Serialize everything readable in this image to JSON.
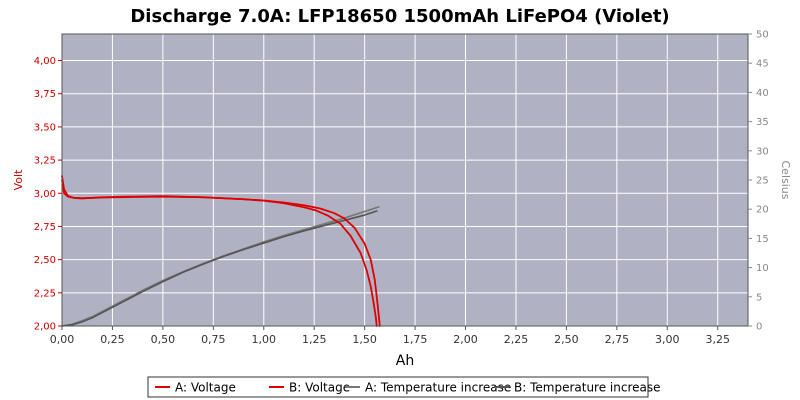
{
  "chart_data": {
    "type": "line",
    "title": "Discharge 7.0A: LFP18650 1500mAh LiFePO4 (Violet)",
    "xlabel": "Ah",
    "ylabel_left": "Volt",
    "ylabel_right": "Celsius",
    "xlim": [
      0,
      3.4
    ],
    "ylim_left": [
      2.0,
      4.2
    ],
    "ylim_right": [
      0,
      50
    ],
    "grid": true,
    "legend_placement": "bottom",
    "x_ticks": [
      "0,00",
      "0,25",
      "0,50",
      "0,75",
      "1,00",
      "1,25",
      "1,50",
      "1,75",
      "2,00",
      "2,25",
      "2,50",
      "2,75",
      "3,00",
      "3,25"
    ],
    "y_left_ticks": [
      "2,00",
      "2,25",
      "2,50",
      "2,75",
      "3,00",
      "3,25",
      "3,50",
      "3,75",
      "4,00"
    ],
    "y_right_ticks": [
      "0",
      "5",
      "10",
      "15",
      "20",
      "25",
      "30",
      "35",
      "40",
      "45",
      "50"
    ],
    "colors": {
      "plot_bg": "#b1b1c4",
      "grid": "#ffffff",
      "voltage": "#dd0000",
      "temperature": "#777777"
    },
    "series": [
      {
        "name": "A: Voltage",
        "axis": "left",
        "color": "#dd0000",
        "x": [
          0,
          0.01,
          0.03,
          0.06,
          0.1,
          0.2,
          0.35,
          0.5,
          0.7,
          0.9,
          1.0,
          1.1,
          1.2,
          1.28,
          1.35,
          1.4,
          1.45,
          1.5,
          1.53,
          1.55,
          1.56,
          1.57,
          1.575
        ],
        "values": [
          3.13,
          3.03,
          2.98,
          2.965,
          2.962,
          2.968,
          2.972,
          2.975,
          2.97,
          2.955,
          2.945,
          2.93,
          2.91,
          2.885,
          2.85,
          2.81,
          2.74,
          2.62,
          2.5,
          2.35,
          2.22,
          2.08,
          2.0
        ]
      },
      {
        "name": "B: Voltage",
        "axis": "left",
        "color": "#dd0000",
        "x": [
          0,
          0.01,
          0.03,
          0.06,
          0.1,
          0.2,
          0.35,
          0.5,
          0.7,
          0.9,
          1.0,
          1.1,
          1.2,
          1.26,
          1.32,
          1.38,
          1.43,
          1.48,
          1.51,
          1.53,
          1.545,
          1.555,
          1.56
        ],
        "values": [
          3.1,
          3.0,
          2.975,
          2.965,
          2.962,
          2.97,
          2.975,
          2.978,
          2.97,
          2.955,
          2.945,
          2.925,
          2.895,
          2.87,
          2.83,
          2.77,
          2.68,
          2.55,
          2.42,
          2.3,
          2.17,
          2.07,
          2.0
        ]
      },
      {
        "name": "A: Temperature increase",
        "axis": "right",
        "color": "#777777",
        "x": [
          0,
          0.05,
          0.1,
          0.15,
          0.2,
          0.3,
          0.4,
          0.5,
          0.6,
          0.7,
          0.8,
          0.9,
          1.0,
          1.1,
          1.2,
          1.3,
          1.4,
          1.5,
          1.57
        ],
        "values": [
          0,
          0.3,
          0.9,
          1.6,
          2.5,
          4.3,
          6.1,
          7.8,
          9.3,
          10.7,
          12.0,
          13.2,
          14.4,
          15.5,
          16.5,
          17.5,
          18.5,
          19.6,
          20.4
        ]
      },
      {
        "name": "B: Temperature increase",
        "axis": "right",
        "color": "#555555",
        "x": [
          0,
          0.05,
          0.1,
          0.15,
          0.2,
          0.3,
          0.4,
          0.5,
          0.6,
          0.7,
          0.8,
          0.9,
          1.0,
          1.1,
          1.2,
          1.3,
          1.4,
          1.5,
          1.56
        ],
        "values": [
          0,
          0.2,
          0.7,
          1.4,
          2.3,
          4.1,
          5.9,
          7.6,
          9.2,
          10.6,
          11.9,
          13.1,
          14.2,
          15.3,
          16.3,
          17.2,
          18.1,
          19.0,
          19.7
        ]
      }
    ]
  }
}
